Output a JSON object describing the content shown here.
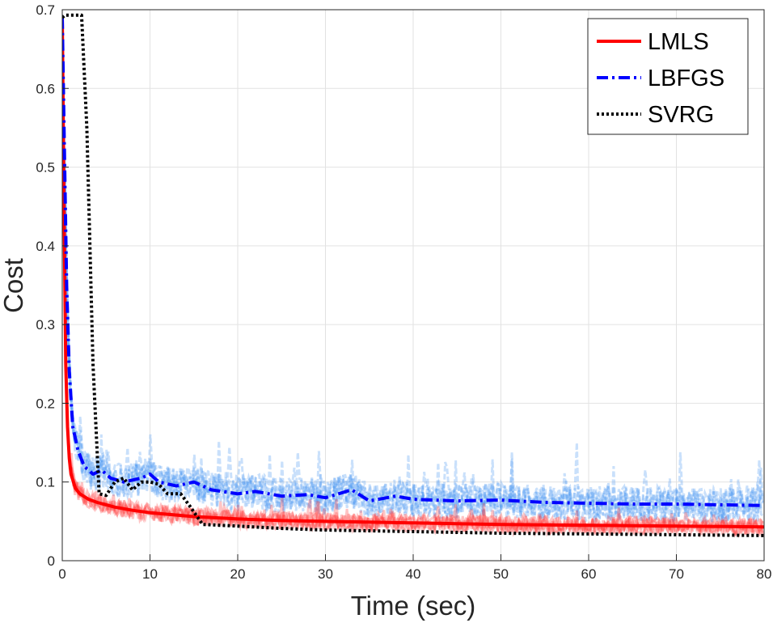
{
  "chart_data": {
    "type": "line",
    "title": "",
    "xlabel": "Time (sec)",
    "ylabel": "Cost",
    "xlim": [
      0,
      80
    ],
    "ylim": [
      0,
      0.7
    ],
    "xticks": [
      0,
      10,
      20,
      30,
      40,
      50,
      60,
      70,
      80
    ],
    "yticks": [
      0,
      0.1,
      0.2,
      0.3,
      0.4,
      0.5,
      0.6,
      0.7
    ],
    "xtick_labels": [
      "0",
      "10",
      "20",
      "30",
      "40",
      "50",
      "60",
      "70",
      "80"
    ],
    "ytick_labels": [
      "0",
      "0.1",
      "0.2",
      "0.3",
      "0.4",
      "0.5",
      "0.6",
      "0.7"
    ],
    "grid": true,
    "legend_position": "top-right",
    "series": [
      {
        "name": "LMLS",
        "color": "#ff0000",
        "style": "solid",
        "x": [
          0,
          0.2,
          0.4,
          0.6,
          0.8,
          1,
          1.5,
          2,
          3,
          4,
          5,
          6,
          8,
          10,
          12,
          15,
          20,
          25,
          30,
          40,
          50,
          60,
          70,
          80
        ],
        "y": [
          0.69,
          0.45,
          0.25,
          0.17,
          0.13,
          0.11,
          0.092,
          0.085,
          0.078,
          0.074,
          0.071,
          0.068,
          0.064,
          0.061,
          0.059,
          0.056,
          0.053,
          0.051,
          0.05,
          0.048,
          0.046,
          0.045,
          0.044,
          0.043
        ]
      },
      {
        "name": "LBFGS",
        "color": "#0000ff",
        "style": "dashdot",
        "x": [
          0,
          0.2,
          0.5,
          0.8,
          1.2,
          1.8,
          2.5,
          3.5,
          4.5,
          5.5,
          7,
          9,
          10,
          11,
          13,
          15,
          17,
          20,
          22,
          25,
          28,
          30,
          33,
          35,
          38,
          40,
          45,
          50,
          55,
          60,
          65,
          70,
          75,
          80
        ],
        "y": [
          0.69,
          0.55,
          0.35,
          0.24,
          0.17,
          0.14,
          0.12,
          0.11,
          0.115,
          0.105,
          0.1,
          0.105,
          0.11,
          0.1,
          0.095,
          0.1,
          0.09,
          0.085,
          0.088,
          0.082,
          0.084,
          0.08,
          0.09,
          0.076,
          0.082,
          0.078,
          0.076,
          0.077,
          0.074,
          0.073,
          0.072,
          0.072,
          0.071,
          0.07
        ]
      },
      {
        "name": "SVRG",
        "color": "#000000",
        "style": "dotted",
        "x": [
          0,
          0.3,
          2.2,
          2.8,
          3.5,
          4.2,
          5,
          6,
          7,
          8,
          9,
          10,
          11,
          12,
          13.5,
          14.5,
          16,
          20,
          25,
          30,
          40,
          50,
          60,
          70,
          80
        ],
        "y": [
          0.69,
          0.693,
          0.693,
          0.55,
          0.25,
          0.085,
          0.083,
          0.1,
          0.105,
          0.09,
          0.1,
          0.1,
          0.097,
          0.085,
          0.085,
          0.07,
          0.046,
          0.044,
          0.041,
          0.039,
          0.037,
          0.035,
          0.034,
          0.033,
          0.032
        ]
      }
    ]
  }
}
